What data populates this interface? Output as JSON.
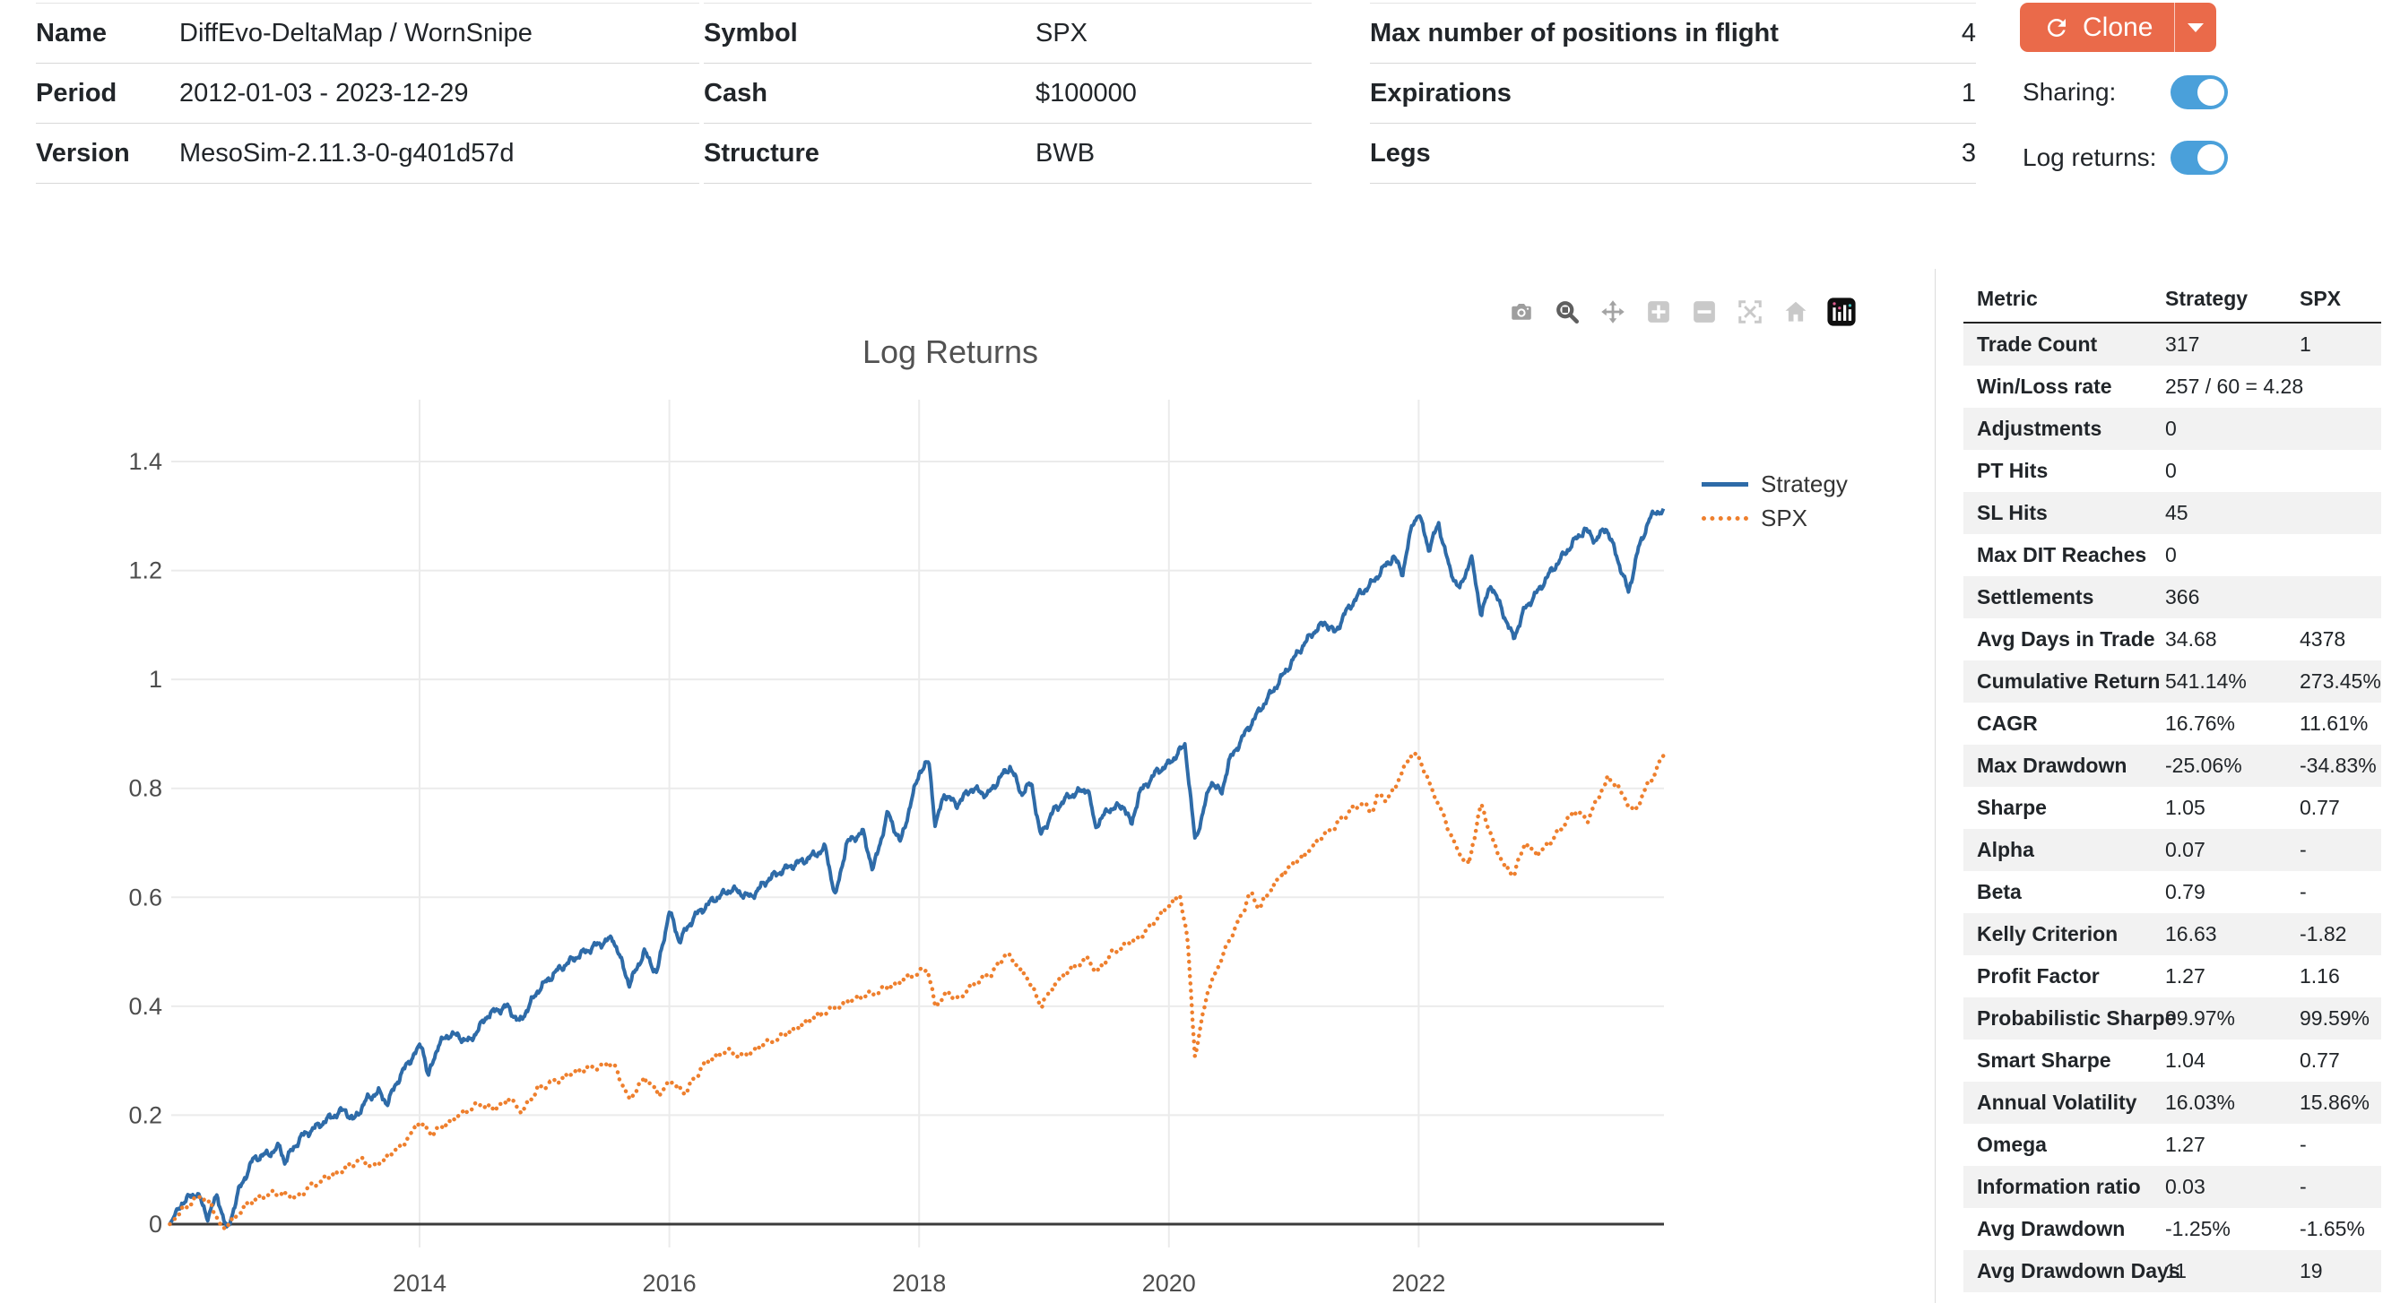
{
  "header": {
    "tables": [
      [
        {
          "label": "Name",
          "value": "DiffEvo-DeltaMap / WornSnipe"
        },
        {
          "label": "Period",
          "value": "2012-01-03 - 2023-12-29"
        },
        {
          "label": "Version",
          "value": "MesoSim-2.11.3-0-g401d57d"
        }
      ],
      [
        {
          "label": "Symbol",
          "value": "SPX"
        },
        {
          "label": "Cash",
          "value": "$100000"
        },
        {
          "label": "Structure",
          "value": "BWB"
        }
      ],
      [
        {
          "label": "Max number of positions in flight",
          "value": "4"
        },
        {
          "label": "Expirations",
          "value": "1"
        },
        {
          "label": "Legs",
          "value": "3"
        }
      ]
    ],
    "clone": {
      "label": "Clone",
      "color": "#ea6a4a"
    },
    "toggles": [
      {
        "label": "Sharing:",
        "on": true
      },
      {
        "label": "Log returns:",
        "on": true
      }
    ],
    "toggle_color": "#4aa0da"
  },
  "modebar": {
    "icons": [
      "camera-icon",
      "zoom-icon",
      "pan-icon",
      "zoom-in-icon",
      "zoom-out-icon",
      "autoscale-icon",
      "home-icon",
      "plotly-logo-icon"
    ]
  },
  "chart_data": {
    "type": "line",
    "title": "Log Returns",
    "xlabel": "",
    "ylabel": "",
    "x_ticks": [
      2014,
      2016,
      2018,
      2020,
      2022
    ],
    "y_ticks": [
      0,
      0.2,
      0.4,
      0.6,
      0.8,
      1,
      1.2,
      1.4
    ],
    "xlim": [
      2012.0,
      2023.97
    ],
    "ylim": [
      -0.05,
      1.45
    ],
    "grid": true,
    "legend_position": "right",
    "series": [
      {
        "name": "Strategy",
        "color": "#2e6ba8",
        "style": "solid",
        "points": [
          [
            2012.0,
            0.0
          ],
          [
            2012.1,
            0.04
          ],
          [
            2012.22,
            0.058
          ],
          [
            2012.3,
            0.013
          ],
          [
            2012.38,
            0.052
          ],
          [
            2012.46,
            -0.013
          ],
          [
            2012.55,
            0.06
          ],
          [
            2012.67,
            0.12
          ],
          [
            2012.8,
            0.13
          ],
          [
            2012.88,
            0.142
          ],
          [
            2012.92,
            0.115
          ],
          [
            2013.05,
            0.16
          ],
          [
            2013.15,
            0.175
          ],
          [
            2013.28,
            0.195
          ],
          [
            2013.4,
            0.21
          ],
          [
            2013.47,
            0.19
          ],
          [
            2013.58,
            0.23
          ],
          [
            2013.67,
            0.243
          ],
          [
            2013.74,
            0.222
          ],
          [
            2013.85,
            0.275
          ],
          [
            2013.95,
            0.31
          ],
          [
            2014.02,
            0.33
          ],
          [
            2014.07,
            0.27
          ],
          [
            2014.15,
            0.33
          ],
          [
            2014.25,
            0.35
          ],
          [
            2014.4,
            0.335
          ],
          [
            2014.55,
            0.385
          ],
          [
            2014.7,
            0.4
          ],
          [
            2014.8,
            0.37
          ],
          [
            2014.95,
            0.43
          ],
          [
            2015.1,
            0.465
          ],
          [
            2015.25,
            0.49
          ],
          [
            2015.4,
            0.51
          ],
          [
            2015.55,
            0.525
          ],
          [
            2015.68,
            0.44
          ],
          [
            2015.8,
            0.5
          ],
          [
            2015.9,
            0.46
          ],
          [
            2016.0,
            0.575
          ],
          [
            2016.08,
            0.52
          ],
          [
            2016.2,
            0.565
          ],
          [
            2016.35,
            0.595
          ],
          [
            2016.5,
            0.615
          ],
          [
            2016.65,
            0.6
          ],
          [
            2016.8,
            0.635
          ],
          [
            2016.95,
            0.655
          ],
          [
            2017.1,
            0.67
          ],
          [
            2017.25,
            0.69
          ],
          [
            2017.33,
            0.6
          ],
          [
            2017.42,
            0.7
          ],
          [
            2017.55,
            0.72
          ],
          [
            2017.63,
            0.65
          ],
          [
            2017.75,
            0.755
          ],
          [
            2017.85,
            0.7
          ],
          [
            2018.0,
            0.83
          ],
          [
            2018.08,
            0.848
          ],
          [
            2018.13,
            0.73
          ],
          [
            2018.2,
            0.79
          ],
          [
            2018.3,
            0.77
          ],
          [
            2018.42,
            0.8
          ],
          [
            2018.55,
            0.788
          ],
          [
            2018.65,
            0.82
          ],
          [
            2018.73,
            0.84
          ],
          [
            2018.82,
            0.79
          ],
          [
            2018.9,
            0.81
          ],
          [
            2018.97,
            0.713
          ],
          [
            2019.08,
            0.76
          ],
          [
            2019.2,
            0.786
          ],
          [
            2019.35,
            0.8
          ],
          [
            2019.41,
            0.73
          ],
          [
            2019.52,
            0.762
          ],
          [
            2019.64,
            0.768
          ],
          [
            2019.7,
            0.732
          ],
          [
            2019.76,
            0.79
          ],
          [
            2019.9,
            0.83
          ],
          [
            2020.0,
            0.845
          ],
          [
            2020.13,
            0.88
          ],
          [
            2020.21,
            0.702
          ],
          [
            2020.34,
            0.814
          ],
          [
            2020.42,
            0.79
          ],
          [
            2020.48,
            0.849
          ],
          [
            2020.62,
            0.905
          ],
          [
            2020.74,
            0.948
          ],
          [
            2020.85,
            0.985
          ],
          [
            2020.95,
            1.02
          ],
          [
            2021.05,
            1.055
          ],
          [
            2021.15,
            1.085
          ],
          [
            2021.25,
            1.105
          ],
          [
            2021.33,
            1.085
          ],
          [
            2021.42,
            1.125
          ],
          [
            2021.52,
            1.155
          ],
          [
            2021.62,
            1.175
          ],
          [
            2021.72,
            1.205
          ],
          [
            2021.8,
            1.225
          ],
          [
            2021.87,
            1.195
          ],
          [
            2021.95,
            1.285
          ],
          [
            2022.0,
            1.305
          ],
          [
            2022.08,
            1.24
          ],
          [
            2022.16,
            1.285
          ],
          [
            2022.25,
            1.2
          ],
          [
            2022.33,
            1.165
          ],
          [
            2022.42,
            1.225
          ],
          [
            2022.5,
            1.12
          ],
          [
            2022.58,
            1.175
          ],
          [
            2022.68,
            1.12
          ],
          [
            2022.76,
            1.075
          ],
          [
            2022.85,
            1.13
          ],
          [
            2022.95,
            1.16
          ],
          [
            2023.05,
            1.195
          ],
          [
            2023.15,
            1.225
          ],
          [
            2023.25,
            1.255
          ],
          [
            2023.33,
            1.275
          ],
          [
            2023.42,
            1.255
          ],
          [
            2023.5,
            1.28
          ],
          [
            2023.58,
            1.23
          ],
          [
            2023.68,
            1.16
          ],
          [
            2023.76,
            1.24
          ],
          [
            2023.84,
            1.29
          ],
          [
            2023.9,
            1.31
          ],
          [
            2023.96,
            1.305
          ]
        ]
      },
      {
        "name": "SPX",
        "color": "#ee7f2d",
        "style": "dotted",
        "points": [
          [
            2012.0,
            0.0
          ],
          [
            2012.08,
            0.022
          ],
          [
            2012.16,
            0.038
          ],
          [
            2012.25,
            0.05
          ],
          [
            2012.33,
            0.038
          ],
          [
            2012.42,
            -0.01
          ],
          [
            2012.52,
            0.012
          ],
          [
            2012.62,
            0.038
          ],
          [
            2012.75,
            0.052
          ],
          [
            2012.88,
            0.058
          ],
          [
            2013.0,
            0.048
          ],
          [
            2013.12,
            0.068
          ],
          [
            2013.25,
            0.085
          ],
          [
            2013.35,
            0.095
          ],
          [
            2013.45,
            0.11
          ],
          [
            2013.55,
            0.118
          ],
          [
            2013.63,
            0.103
          ],
          [
            2013.75,
            0.125
          ],
          [
            2013.88,
            0.15
          ],
          [
            2014.0,
            0.188
          ],
          [
            2014.1,
            0.165
          ],
          [
            2014.22,
            0.185
          ],
          [
            2014.35,
            0.205
          ],
          [
            2014.48,
            0.22
          ],
          [
            2014.6,
            0.212
          ],
          [
            2014.72,
            0.23
          ],
          [
            2014.82,
            0.205
          ],
          [
            2014.95,
            0.25
          ],
          [
            2015.1,
            0.262
          ],
          [
            2015.25,
            0.28
          ],
          [
            2015.4,
            0.288
          ],
          [
            2015.55,
            0.295
          ],
          [
            2015.68,
            0.228
          ],
          [
            2015.8,
            0.268
          ],
          [
            2015.92,
            0.24
          ],
          [
            2016.02,
            0.262
          ],
          [
            2016.12,
            0.24
          ],
          [
            2016.28,
            0.295
          ],
          [
            2016.45,
            0.318
          ],
          [
            2016.6,
            0.308
          ],
          [
            2016.75,
            0.33
          ],
          [
            2016.9,
            0.345
          ],
          [
            2017.05,
            0.365
          ],
          [
            2017.2,
            0.385
          ],
          [
            2017.35,
            0.4
          ],
          [
            2017.5,
            0.415
          ],
          [
            2017.65,
            0.425
          ],
          [
            2017.8,
            0.44
          ],
          [
            2017.92,
            0.455
          ],
          [
            2018.07,
            0.468
          ],
          [
            2018.13,
            0.398
          ],
          [
            2018.22,
            0.425
          ],
          [
            2018.32,
            0.415
          ],
          [
            2018.45,
            0.445
          ],
          [
            2018.58,
            0.46
          ],
          [
            2018.7,
            0.498
          ],
          [
            2018.8,
            0.47
          ],
          [
            2018.9,
            0.44
          ],
          [
            2018.97,
            0.4
          ],
          [
            2019.1,
            0.445
          ],
          [
            2019.22,
            0.47
          ],
          [
            2019.35,
            0.488
          ],
          [
            2019.42,
            0.462
          ],
          [
            2019.55,
            0.498
          ],
          [
            2019.65,
            0.512
          ],
          [
            2019.78,
            0.53
          ],
          [
            2019.9,
            0.56
          ],
          [
            2020.0,
            0.585
          ],
          [
            2020.09,
            0.604
          ],
          [
            2020.15,
            0.52
          ],
          [
            2020.21,
            0.305
          ],
          [
            2020.3,
            0.42
          ],
          [
            2020.41,
            0.482
          ],
          [
            2020.5,
            0.53
          ],
          [
            2020.58,
            0.565
          ],
          [
            2020.65,
            0.61
          ],
          [
            2020.72,
            0.58
          ],
          [
            2020.8,
            0.61
          ],
          [
            2020.9,
            0.64
          ],
          [
            2020.98,
            0.659
          ],
          [
            2021.1,
            0.68
          ],
          [
            2021.21,
            0.708
          ],
          [
            2021.32,
            0.73
          ],
          [
            2021.44,
            0.757
          ],
          [
            2021.55,
            0.775
          ],
          [
            2021.62,
            0.755
          ],
          [
            2021.68,
            0.79
          ],
          [
            2021.75,
            0.778
          ],
          [
            2021.85,
            0.82
          ],
          [
            2021.93,
            0.861
          ],
          [
            2022.0,
            0.858
          ],
          [
            2022.1,
            0.8
          ],
          [
            2022.18,
            0.76
          ],
          [
            2022.3,
            0.69
          ],
          [
            2022.4,
            0.66
          ],
          [
            2022.5,
            0.772
          ],
          [
            2022.6,
            0.7
          ],
          [
            2022.68,
            0.66
          ],
          [
            2022.76,
            0.64
          ],
          [
            2022.85,
            0.7
          ],
          [
            2022.95,
            0.68
          ],
          [
            2023.05,
            0.7
          ],
          [
            2023.15,
            0.73
          ],
          [
            2023.25,
            0.76
          ],
          [
            2023.35,
            0.74
          ],
          [
            2023.45,
            0.79
          ],
          [
            2023.52,
            0.82
          ],
          [
            2023.6,
            0.8
          ],
          [
            2023.73,
            0.755
          ],
          [
            2023.82,
            0.8
          ],
          [
            2023.9,
            0.832
          ],
          [
            2023.96,
            0.862
          ]
        ]
      }
    ]
  },
  "metrics": {
    "headers": [
      "Metric",
      "Strategy",
      "SPX"
    ],
    "rows": [
      [
        "Trade Count",
        "317",
        "1"
      ],
      [
        "Win/Loss rate",
        "257 / 60 = 4.28",
        ""
      ],
      [
        "Adjustments",
        "0",
        ""
      ],
      [
        "PT Hits",
        "0",
        ""
      ],
      [
        "SL Hits",
        "45",
        ""
      ],
      [
        "Max DIT Reaches",
        "0",
        ""
      ],
      [
        "Settlements",
        "366",
        ""
      ],
      [
        "Avg Days in Trade",
        "34.68",
        "4378"
      ],
      [
        "Cumulative Return",
        "541.14%",
        "273.45%"
      ],
      [
        "CAGR",
        "16.76%",
        "11.61%"
      ],
      [
        "Max Drawdown",
        "-25.06%",
        "-34.83%"
      ],
      [
        "Sharpe",
        "1.05",
        "0.77"
      ],
      [
        "Alpha",
        "0.07",
        "-"
      ],
      [
        "Beta",
        "0.79",
        "-"
      ],
      [
        "Kelly Criterion",
        "16.63",
        "-1.82"
      ],
      [
        "Profit Factor",
        "1.27",
        "1.16"
      ],
      [
        "Probabilistic Sharpe",
        "99.97%",
        "99.59%"
      ],
      [
        "Smart Sharpe",
        "1.04",
        "0.77"
      ],
      [
        "Annual Volatility",
        "16.03%",
        "15.86%"
      ],
      [
        "Omega",
        "1.27",
        "-"
      ],
      [
        "Information ratio",
        "0.03",
        "-"
      ],
      [
        "Avg Drawdown",
        "-1.25%",
        "-1.65%"
      ],
      [
        "Avg Drawdown Days",
        "11",
        "19"
      ]
    ]
  }
}
